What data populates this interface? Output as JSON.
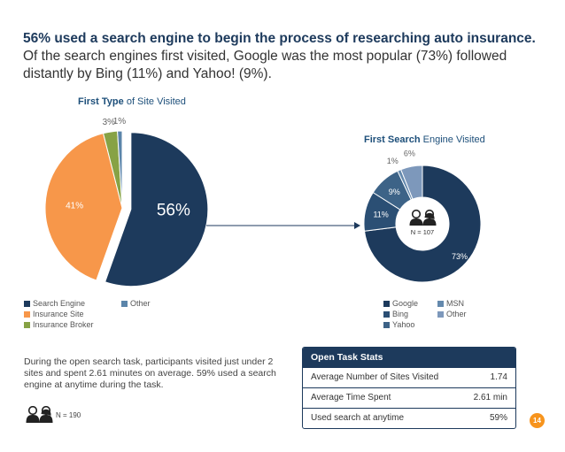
{
  "headline": {
    "bold": "56% used a search engine to begin the process of researching auto insurance.",
    "rest": " Of the search engines first visited, Google was the most popular (73%) followed distantly by Bing (11%) and Yahoo! (9%)."
  },
  "chart_data": [
    {
      "type": "pie",
      "title_bold": "First Type",
      "title_rest": " of Site Visited",
      "categories": [
        "Search Engine",
        "Insurance Site",
        "Insurance Broker",
        "Other"
      ],
      "values": [
        56,
        41,
        3,
        1
      ],
      "labels": [
        "56%",
        "41%",
        "3%",
        "1%"
      ],
      "colors": [
        "#1d3a5c",
        "#f7974a",
        "#87a245",
        "#5b85aa"
      ],
      "exploded": "Search Engine"
    },
    {
      "type": "donut",
      "title_bold": "First Search",
      "title_rest": " Engine Visited",
      "categories": [
        "Google",
        "Bing",
        "Yahoo",
        "MSN",
        "Other"
      ],
      "values": [
        73,
        11,
        9,
        1,
        6
      ],
      "labels": [
        "73%",
        "11%",
        "9%",
        "1%",
        "6%"
      ],
      "colors": [
        "#1d3a5c",
        "#2b4f74",
        "#3d6387",
        "#6489ad",
        "#7d98bb"
      ],
      "center_label": "N = 107"
    }
  ],
  "legend1": [
    "Search Engine",
    "Insurance Site",
    "Insurance Broker",
    "Other"
  ],
  "legend2": [
    "Google",
    "Bing",
    "Yahoo",
    "MSN",
    "Other"
  ],
  "paragraph": "During the open search task, participants visited just under 2 sites and spent 2.61 minutes on average. 59% used a search engine at anytime during the task.",
  "n_label": "N = 190",
  "stats": {
    "title": "Open Task Stats",
    "rows": [
      {
        "label": "Average Number of Sites Visited",
        "value": "1.74"
      },
      {
        "label": "Average Time Spent",
        "value": "2.61 min"
      },
      {
        "label": "Used search at anytime",
        "value": "59%"
      }
    ]
  },
  "page_number": "14"
}
